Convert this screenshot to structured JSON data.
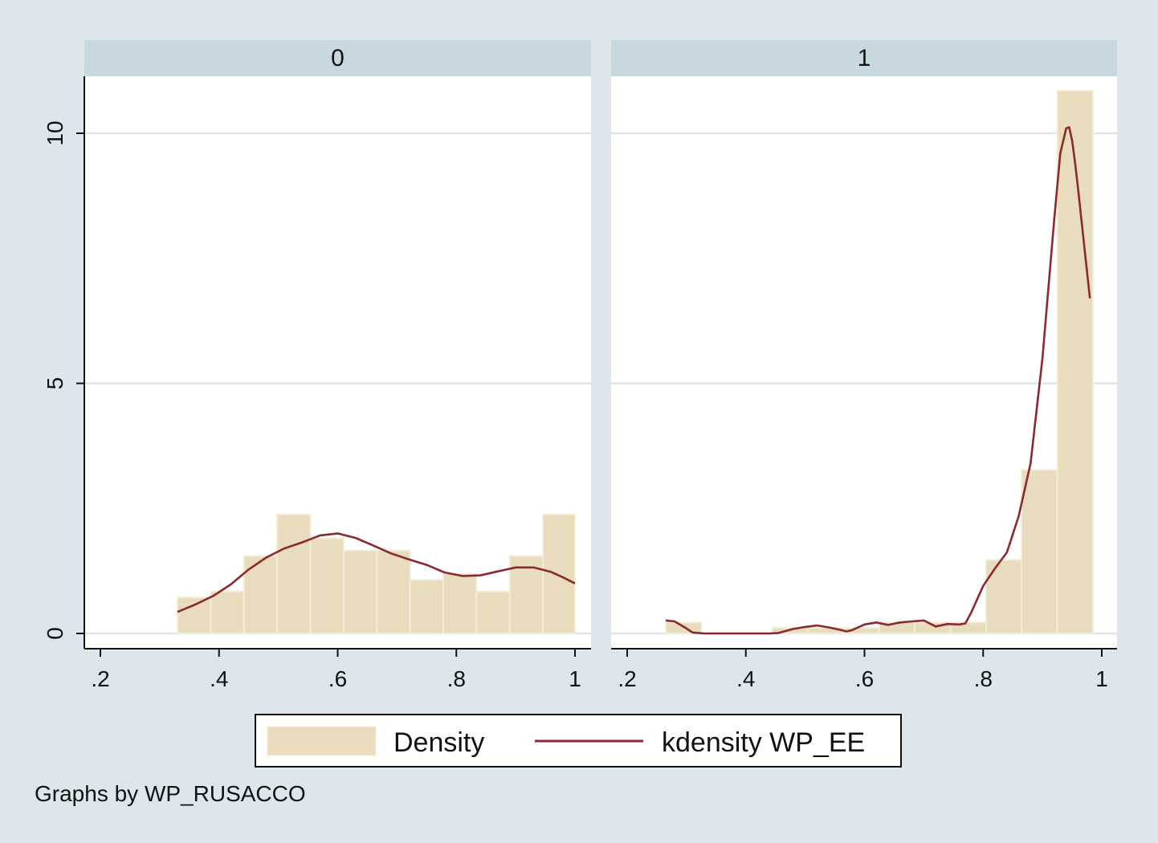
{
  "chart_data": {
    "type": "bar",
    "note": "Graphs by WP_RUSACCO",
    "xticks": [
      ".2",
      ".4",
      ".6",
      ".8",
      "1"
    ],
    "xtick_values": [
      0.2,
      0.4,
      0.6,
      0.8,
      1.0
    ],
    "yticks": [
      "0",
      "5",
      "10"
    ],
    "ytick_values": [
      0,
      5,
      10
    ],
    "xlim": [
      0.18,
      1.03
    ],
    "ylim": [
      -0.3,
      11.5
    ],
    "grid": "horizontal",
    "legend": {
      "position": "bottom",
      "entries": [
        {
          "label": "Density",
          "kind": "bar"
        },
        {
          "label": "kdensity WP_EE",
          "kind": "line"
        }
      ]
    },
    "colors": {
      "background": "#dde6ea",
      "panel_header": "#c8d8df",
      "bar_fill": "#e8dcbd",
      "bar_edge": "#f3ecd9",
      "line": "#8b2a2e",
      "grid": "#dde6ea"
    },
    "panels": [
      {
        "title": "0",
        "bars": [
          {
            "x0": 0.33,
            "x1": 0.386,
            "y": 0.72
          },
          {
            "x0": 0.386,
            "x1": 0.442,
            "y": 0.84
          },
          {
            "x0": 0.442,
            "x1": 0.498,
            "y": 1.55
          },
          {
            "x0": 0.498,
            "x1": 0.554,
            "y": 2.38
          },
          {
            "x0": 0.554,
            "x1": 0.61,
            "y": 1.9
          },
          {
            "x0": 0.61,
            "x1": 0.666,
            "y": 1.66
          },
          {
            "x0": 0.666,
            "x1": 0.722,
            "y": 1.66
          },
          {
            "x0": 0.722,
            "x1": 0.778,
            "y": 1.07
          },
          {
            "x0": 0.778,
            "x1": 0.834,
            "y": 1.19
          },
          {
            "x0": 0.834,
            "x1": 0.89,
            "y": 0.84
          },
          {
            "x0": 0.89,
            "x1": 0.946,
            "y": 1.55
          },
          {
            "x0": 0.946,
            "x1": 1.0,
            "y": 2.38
          }
        ],
        "kdensity": {
          "x": [
            0.33,
            0.36,
            0.39,
            0.42,
            0.45,
            0.48,
            0.51,
            0.54,
            0.57,
            0.6,
            0.63,
            0.66,
            0.69,
            0.72,
            0.75,
            0.78,
            0.81,
            0.84,
            0.87,
            0.9,
            0.93,
            0.96,
            0.98,
            1.0
          ],
          "y": [
            0.43,
            0.58,
            0.75,
            0.98,
            1.28,
            1.52,
            1.7,
            1.82,
            1.96,
            2.0,
            1.91,
            1.76,
            1.6,
            1.48,
            1.37,
            1.22,
            1.15,
            1.16,
            1.24,
            1.32,
            1.32,
            1.23,
            1.12,
            1.0
          ]
        }
      },
      {
        "title": "1",
        "bars": [
          {
            "x0": 0.265,
            "x1": 0.325,
            "y": 0.22
          },
          {
            "x0": 0.445,
            "x1": 0.505,
            "y": 0.11
          },
          {
            "x0": 0.505,
            "x1": 0.565,
            "y": 0.11
          },
          {
            "x0": 0.565,
            "x1": 0.625,
            "y": 0.11
          },
          {
            "x0": 0.625,
            "x1": 0.685,
            "y": 0.22
          },
          {
            "x0": 0.685,
            "x1": 0.745,
            "y": 0.22
          },
          {
            "x0": 0.745,
            "x1": 0.805,
            "y": 0.22
          },
          {
            "x0": 0.805,
            "x1": 0.865,
            "y": 1.47
          },
          {
            "x0": 0.865,
            "x1": 0.925,
            "y": 3.27
          },
          {
            "x0": 0.925,
            "x1": 0.985,
            "y": 10.85
          }
        ],
        "kdensity": {
          "x": [
            0.265,
            0.28,
            0.3,
            0.31,
            0.33,
            0.36,
            0.4,
            0.44,
            0.455,
            0.48,
            0.5,
            0.52,
            0.54,
            0.56,
            0.57,
            0.58,
            0.6,
            0.62,
            0.64,
            0.66,
            0.68,
            0.7,
            0.72,
            0.74,
            0.76,
            0.77,
            0.78,
            0.8,
            0.82,
            0.84,
            0.86,
            0.88,
            0.9,
            0.92,
            0.93,
            0.94,
            0.945,
            0.95,
            0.955,
            0.96,
            0.97,
            0.98
          ],
          "y": [
            0.26,
            0.24,
            0.1,
            0.02,
            0.0,
            0.0,
            0.0,
            0.0,
            0.01,
            0.09,
            0.13,
            0.16,
            0.12,
            0.07,
            0.04,
            0.07,
            0.18,
            0.22,
            0.17,
            0.22,
            0.24,
            0.26,
            0.14,
            0.19,
            0.18,
            0.2,
            0.42,
            0.95,
            1.3,
            1.62,
            2.35,
            3.4,
            5.5,
            8.3,
            9.6,
            10.1,
            10.12,
            9.85,
            9.4,
            8.9,
            7.8,
            6.7
          ]
        }
      }
    ]
  }
}
